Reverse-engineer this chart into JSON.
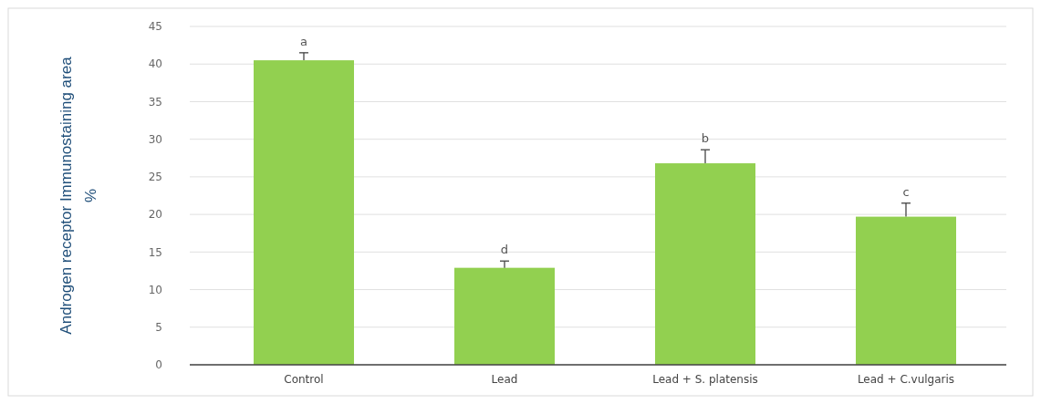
{
  "chart_data": {
    "type": "bar",
    "ylabel": "Androgen receptor Immunostaining area\n%",
    "categories": [
      "Control",
      "Lead",
      "Lead + S. platensis",
      "Lead + C.vulgaris"
    ],
    "values": [
      40.5,
      12.9,
      26.8,
      19.7
    ],
    "errors": [
      1.0,
      0.9,
      1.8,
      1.8
    ],
    "color": "#92d050",
    "ylim": [
      0,
      45
    ],
    "yticks": [
      0,
      5,
      10,
      15,
      20,
      25,
      30,
      35,
      40,
      45
    ],
    "grid": "y",
    "annotations": [
      {
        "text": "a",
        "x": "Control",
        "y": 41.5
      },
      {
        "text": "d",
        "x": "Lead",
        "y": 13.8
      },
      {
        "text": "b",
        "x": "Lead + S. platensis",
        "y": 28.6
      },
      {
        "text": "c",
        "x": "Lead + C.vulgaris",
        "y": 21.5
      }
    ]
  }
}
